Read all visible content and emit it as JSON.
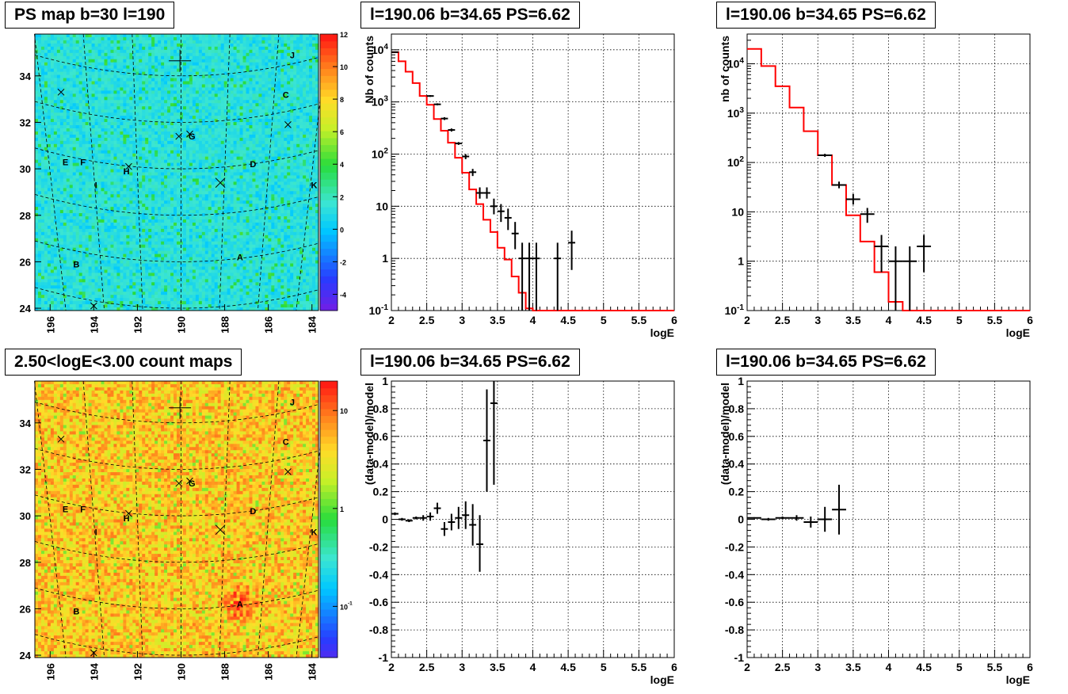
{
  "panels": {
    "ps_map": {
      "title": "PS map b=30 l=190"
    },
    "count_map": {
      "title": "2.50<logE<3.00 count maps"
    },
    "spec_left": {
      "title": "l=190.06 b=34.65 PS=6.62"
    },
    "spec_right": {
      "title": "l=190.06 b=34.65 PS=6.62"
    },
    "res_left": {
      "title": "l=190.06 b=34.65 PS=6.62"
    },
    "res_right": {
      "title": "l=190.06 b=34.65 PS=6.62"
    }
  },
  "colors": {
    "model": "#ff0000",
    "data": "#000000"
  },
  "chart_data": [
    {
      "id": "ps_map",
      "type": "heatmap",
      "title": "PS map b=30 l=190",
      "x_ticks": [
        "196",
        "194",
        "192",
        "190",
        "188",
        "186",
        "184"
      ],
      "y_ticks": [
        "24",
        "26",
        "28",
        "30",
        "32",
        "34"
      ],
      "xlim": [
        196.7,
        183.7
      ],
      "ylim": [
        23.9,
        35.8
      ],
      "colorbar": {
        "ticks": [
          "-4",
          "-2",
          "0",
          "2",
          "4",
          "6",
          "8",
          "10",
          "12"
        ],
        "range": [
          -5,
          12
        ],
        "log": false
      },
      "labels": [
        {
          "text": "J",
          "l": 184.9,
          "b": 34.9
        },
        {
          "text": "C",
          "l": 185.2,
          "b": 33.2
        },
        {
          "text": "G",
          "l": 189.5,
          "b": 31.4
        },
        {
          "text": "E",
          "l": 195.3,
          "b": 30.3
        },
        {
          "text": "F",
          "l": 194.5,
          "b": 30.3
        },
        {
          "text": "H",
          "l": 192.5,
          "b": 29.9
        },
        {
          "text": "D",
          "l": 186.7,
          "b": 30.2
        },
        {
          "text": "I",
          "l": 193.9,
          "b": 29.3
        },
        {
          "text": "K",
          "l": 183.9,
          "b": 29.3
        },
        {
          "text": "B",
          "l": 194.8,
          "b": 25.9
        },
        {
          "text": "A",
          "l": 187.3,
          "b": 26.2
        }
      ],
      "markers": [
        {
          "kind": "plus",
          "l": 190.05,
          "b": 34.65
        },
        {
          "kind": "x",
          "l": 195.5,
          "b": 33.3
        },
        {
          "kind": "x",
          "l": 190.1,
          "b": 31.4
        },
        {
          "kind": "x",
          "l": 189.6,
          "b": 31.5
        },
        {
          "kind": "x",
          "l": 192.4,
          "b": 30.1
        },
        {
          "kind": "x",
          "l": 188.2,
          "b": 29.4
        },
        {
          "kind": "x",
          "l": 185.1,
          "b": 31.9
        },
        {
          "kind": "x",
          "l": 194.0,
          "b": 24.1
        }
      ]
    },
    {
      "id": "count_map",
      "type": "heatmap",
      "title": "2.50<logE<3.00 count maps",
      "x_ticks": [
        "196",
        "194",
        "192",
        "190",
        "188",
        "186",
        "184"
      ],
      "y_ticks": [
        "24",
        "26",
        "28",
        "30",
        "32",
        "34"
      ],
      "xlim": [
        196.7,
        183.7
      ],
      "ylim": [
        23.9,
        35.8
      ],
      "colorbar": {
        "ticks": [
          "10^-1",
          "1",
          "10"
        ],
        "range": [
          0.03,
          20
        ],
        "log": true
      },
      "labels": [
        {
          "text": "J",
          "l": 184.9,
          "b": 34.9
        },
        {
          "text": "C",
          "l": 185.2,
          "b": 33.2
        },
        {
          "text": "G",
          "l": 189.5,
          "b": 31.4
        },
        {
          "text": "E",
          "l": 195.3,
          "b": 30.3
        },
        {
          "text": "F",
          "l": 194.5,
          "b": 30.3
        },
        {
          "text": "H",
          "l": 192.5,
          "b": 29.9
        },
        {
          "text": "D",
          "l": 186.7,
          "b": 30.2
        },
        {
          "text": "I",
          "l": 193.9,
          "b": 29.3
        },
        {
          "text": "K",
          "l": 183.9,
          "b": 29.3
        },
        {
          "text": "B",
          "l": 194.8,
          "b": 25.9
        },
        {
          "text": "A",
          "l": 187.3,
          "b": 26.2
        }
      ],
      "markers": [
        {
          "kind": "plus",
          "l": 190.05,
          "b": 34.65
        },
        {
          "kind": "x",
          "l": 195.5,
          "b": 33.3
        },
        {
          "kind": "x",
          "l": 190.1,
          "b": 31.4
        },
        {
          "kind": "x",
          "l": 189.6,
          "b": 31.5
        },
        {
          "kind": "x",
          "l": 192.4,
          "b": 30.1
        },
        {
          "kind": "x",
          "l": 188.2,
          "b": 29.4
        },
        {
          "kind": "x",
          "l": 185.1,
          "b": 31.9
        },
        {
          "kind": "x",
          "l": 194.0,
          "b": 24.1
        }
      ]
    },
    {
      "id": "spec_left",
      "type": "line",
      "title": "l=190.06 b=34.65 PS=6.62",
      "xlabel": "logE",
      "ylabel": "Nb of counts",
      "xlim": [
        2,
        6
      ],
      "ylim": [
        0.1,
        20000
      ],
      "ylog": true,
      "grid": true,
      "x_ticks": [
        "2",
        "2.5",
        "3",
        "3.5",
        "4",
        "4.5",
        "5",
        "5.5",
        "6"
      ],
      "y_ticks": [
        "10^-1",
        "1",
        "10",
        "10^2",
        "10^3",
        "10^4"
      ],
      "model_edges": [
        2,
        2.1,
        2.2,
        2.3,
        2.4,
        2.5,
        2.6,
        2.7,
        2.8,
        2.9,
        3.0,
        3.1,
        3.2,
        3.3,
        3.4,
        3.5,
        3.6,
        3.7,
        3.8,
        3.9,
        4.0,
        4.1,
        6.0
      ],
      "model_values": [
        9000,
        6000,
        3800,
        2300,
        1300,
        880,
        470,
        280,
        165,
        85,
        44,
        21,
        11,
        5.5,
        3.2,
        1.6,
        0.95,
        0.45,
        0.22,
        0.11,
        0.1,
        0.1
      ],
      "data": [
        {
          "x": 2.05,
          "y": 9000,
          "xerr": 0.05,
          "lo": 8900,
          "hi": 9100
        },
        {
          "x": 2.55,
          "y": 1300,
          "xerr": 0.05,
          "lo": 1250,
          "hi": 1350
        },
        {
          "x": 2.65,
          "y": 900,
          "xerr": 0.05,
          "lo": 860,
          "hi": 940
        },
        {
          "x": 2.75,
          "y": 480,
          "xerr": 0.05,
          "lo": 450,
          "hi": 510
        },
        {
          "x": 2.85,
          "y": 290,
          "xerr": 0.05,
          "lo": 270,
          "hi": 310
        },
        {
          "x": 2.95,
          "y": 160,
          "xerr": 0.05,
          "lo": 150,
          "hi": 170
        },
        {
          "x": 3.05,
          "y": 90,
          "xerr": 0.05,
          "lo": 80,
          "hi": 100
        },
        {
          "x": 3.15,
          "y": 45,
          "xerr": 0.05,
          "lo": 38,
          "hi": 52
        },
        {
          "x": 3.25,
          "y": 18,
          "xerr": 0.05,
          "lo": 14,
          "hi": 23
        },
        {
          "x": 3.35,
          "y": 18,
          "xerr": 0.05,
          "lo": 14,
          "hi": 23
        },
        {
          "x": 3.45,
          "y": 10,
          "xerr": 0.05,
          "lo": 7,
          "hi": 14
        },
        {
          "x": 3.55,
          "y": 8,
          "xerr": 0.05,
          "lo": 5,
          "hi": 11
        },
        {
          "x": 3.65,
          "y": 6,
          "xerr": 0.05,
          "lo": 3.5,
          "hi": 9
        },
        {
          "x": 3.75,
          "y": 3,
          "xerr": 0.05,
          "lo": 1.5,
          "hi": 5
        },
        {
          "x": 3.85,
          "y": 1,
          "xerr": 0.05,
          "lo": 0.1,
          "hi": 2
        },
        {
          "x": 3.95,
          "y": 1,
          "xerr": 0.05,
          "lo": 0.1,
          "hi": 2
        },
        {
          "x": 4.05,
          "y": 1,
          "xerr": 0.05,
          "lo": 0.1,
          "hi": 2
        },
        {
          "x": 4.35,
          "y": 1,
          "xerr": 0.05,
          "lo": 0.1,
          "hi": 2
        },
        {
          "x": 4.55,
          "y": 2,
          "xerr": 0.05,
          "lo": 0.6,
          "hi": 3.4
        }
      ]
    },
    {
      "id": "spec_right",
      "type": "line",
      "title": "l=190.06 b=34.65 PS=6.62",
      "xlabel": "logE",
      "ylabel": "nb of counts",
      "xlim": [
        2,
        6
      ],
      "ylim": [
        0.1,
        40000
      ],
      "ylog": true,
      "grid": true,
      "x_ticks": [
        "2",
        "2.5",
        "3",
        "3.5",
        "4",
        "4.5",
        "5",
        "5.5",
        "6"
      ],
      "y_ticks": [
        "10^-1",
        "1",
        "10",
        "10^2",
        "10^3",
        "10^4"
      ],
      "model_edges": [
        2,
        2.2,
        2.4,
        2.6,
        2.8,
        3.0,
        3.2,
        3.4,
        3.6,
        3.8,
        4.0,
        4.2,
        6.0
      ],
      "model_values": [
        20000,
        9000,
        3500,
        1300,
        430,
        140,
        35,
        8.5,
        2.5,
        0.6,
        0.15,
        0.1
      ],
      "data": [
        {
          "x": 3.1,
          "y": 140,
          "xerr": 0.1,
          "lo": 130,
          "hi": 150
        },
        {
          "x": 3.3,
          "y": 35,
          "xerr": 0.1,
          "lo": 30,
          "hi": 41
        },
        {
          "x": 3.5,
          "y": 18,
          "xerr": 0.1,
          "lo": 14,
          "hi": 23
        },
        {
          "x": 3.7,
          "y": 9,
          "xerr": 0.1,
          "lo": 6,
          "hi": 12
        },
        {
          "x": 3.9,
          "y": 2,
          "xerr": 0.1,
          "lo": 0.6,
          "hi": 3.4
        },
        {
          "x": 4.1,
          "y": 1,
          "xerr": 0.1,
          "lo": 0.1,
          "hi": 2
        },
        {
          "x": 4.3,
          "y": 1,
          "xerr": 0.1,
          "lo": 0.1,
          "hi": 2
        },
        {
          "x": 4.5,
          "y": 2,
          "xerr": 0.1,
          "lo": 0.6,
          "hi": 3.4
        }
      ]
    },
    {
      "id": "res_left",
      "type": "scatter",
      "title": "l=190.06 b=34.65 PS=6.62",
      "xlabel": "logE",
      "ylabel": "(data-model)/model",
      "xlim": [
        2,
        6
      ],
      "ylim": [
        -1,
        1
      ],
      "grid": true,
      "x_ticks": [
        "2",
        "2.5",
        "3",
        "3.5",
        "4",
        "4.5",
        "5",
        "5.5",
        "6"
      ],
      "y_ticks": [
        "-1",
        "-0.8",
        "-0.6",
        "-0.4",
        "-0.2",
        "0",
        "0.2",
        "0.4",
        "0.6",
        "0.8",
        "1"
      ],
      "data": [
        {
          "x": 2.05,
          "y": 0.04,
          "xerr": 0.05,
          "lo": 0.03,
          "hi": 0.05
        },
        {
          "x": 2.15,
          "y": 0.0,
          "xerr": 0.05,
          "lo": -0.01,
          "hi": 0.01
        },
        {
          "x": 2.25,
          "y": -0.01,
          "xerr": 0.05,
          "lo": -0.02,
          "hi": 0.0
        },
        {
          "x": 2.35,
          "y": 0.01,
          "xerr": 0.05,
          "lo": 0.0,
          "hi": 0.02
        },
        {
          "x": 2.45,
          "y": 0.01,
          "xerr": 0.05,
          "lo": -0.01,
          "hi": 0.03
        },
        {
          "x": 2.55,
          "y": 0.02,
          "xerr": 0.05,
          "lo": -0.01,
          "hi": 0.05
        },
        {
          "x": 2.65,
          "y": 0.08,
          "xerr": 0.05,
          "lo": 0.04,
          "hi": 0.12
        },
        {
          "x": 2.75,
          "y": -0.07,
          "xerr": 0.05,
          "lo": -0.12,
          "hi": -0.02
        },
        {
          "x": 2.85,
          "y": -0.02,
          "xerr": 0.05,
          "lo": -0.08,
          "hi": 0.04
        },
        {
          "x": 2.95,
          "y": 0.01,
          "xerr": 0.05,
          "lo": -0.07,
          "hi": 0.09
        },
        {
          "x": 3.05,
          "y": 0.03,
          "xerr": 0.05,
          "lo": -0.07,
          "hi": 0.13
        },
        {
          "x": 3.15,
          "y": -0.04,
          "xerr": 0.05,
          "lo": -0.19,
          "hi": 0.11
        },
        {
          "x": 3.25,
          "y": -0.18,
          "xerr": 0.05,
          "lo": -0.38,
          "hi": 0.03
        },
        {
          "x": 3.35,
          "y": 0.57,
          "xerr": 0.05,
          "lo": 0.2,
          "hi": 0.94
        },
        {
          "x": 3.45,
          "y": 0.84,
          "xerr": 0.05,
          "lo": 0.25,
          "hi": 1.0
        }
      ]
    },
    {
      "id": "res_right",
      "type": "scatter",
      "title": "l=190.06 b=34.65 PS=6.62",
      "xlabel": "logE",
      "ylabel": "(data-model)/model",
      "xlim": [
        2,
        6
      ],
      "ylim": [
        -1,
        1
      ],
      "grid": true,
      "x_ticks": [
        "2",
        "2.5",
        "3",
        "3.5",
        "4",
        "4.5",
        "5",
        "5.5",
        "6"
      ],
      "y_ticks": [
        "-1",
        "-0.8",
        "-0.6",
        "-0.4",
        "-0.2",
        "0",
        "0.2",
        "0.4",
        "0.6",
        "0.8",
        "1"
      ],
      "data": [
        {
          "x": 2.1,
          "y": 0.01,
          "xerr": 0.1,
          "lo": 0.005,
          "hi": 0.015
        },
        {
          "x": 2.3,
          "y": 0.0,
          "xerr": 0.1,
          "lo": -0.01,
          "hi": 0.01
        },
        {
          "x": 2.5,
          "y": 0.01,
          "xerr": 0.1,
          "lo": 0.0,
          "hi": 0.02
        },
        {
          "x": 2.7,
          "y": 0.01,
          "xerr": 0.1,
          "lo": -0.01,
          "hi": 0.03
        },
        {
          "x": 2.9,
          "y": -0.02,
          "xerr": 0.1,
          "lo": -0.06,
          "hi": 0.02
        },
        {
          "x": 3.1,
          "y": 0.0,
          "xerr": 0.1,
          "lo": -0.09,
          "hi": 0.09
        },
        {
          "x": 3.3,
          "y": 0.07,
          "xerr": 0.1,
          "lo": -0.11,
          "hi": 0.25
        }
      ]
    }
  ]
}
